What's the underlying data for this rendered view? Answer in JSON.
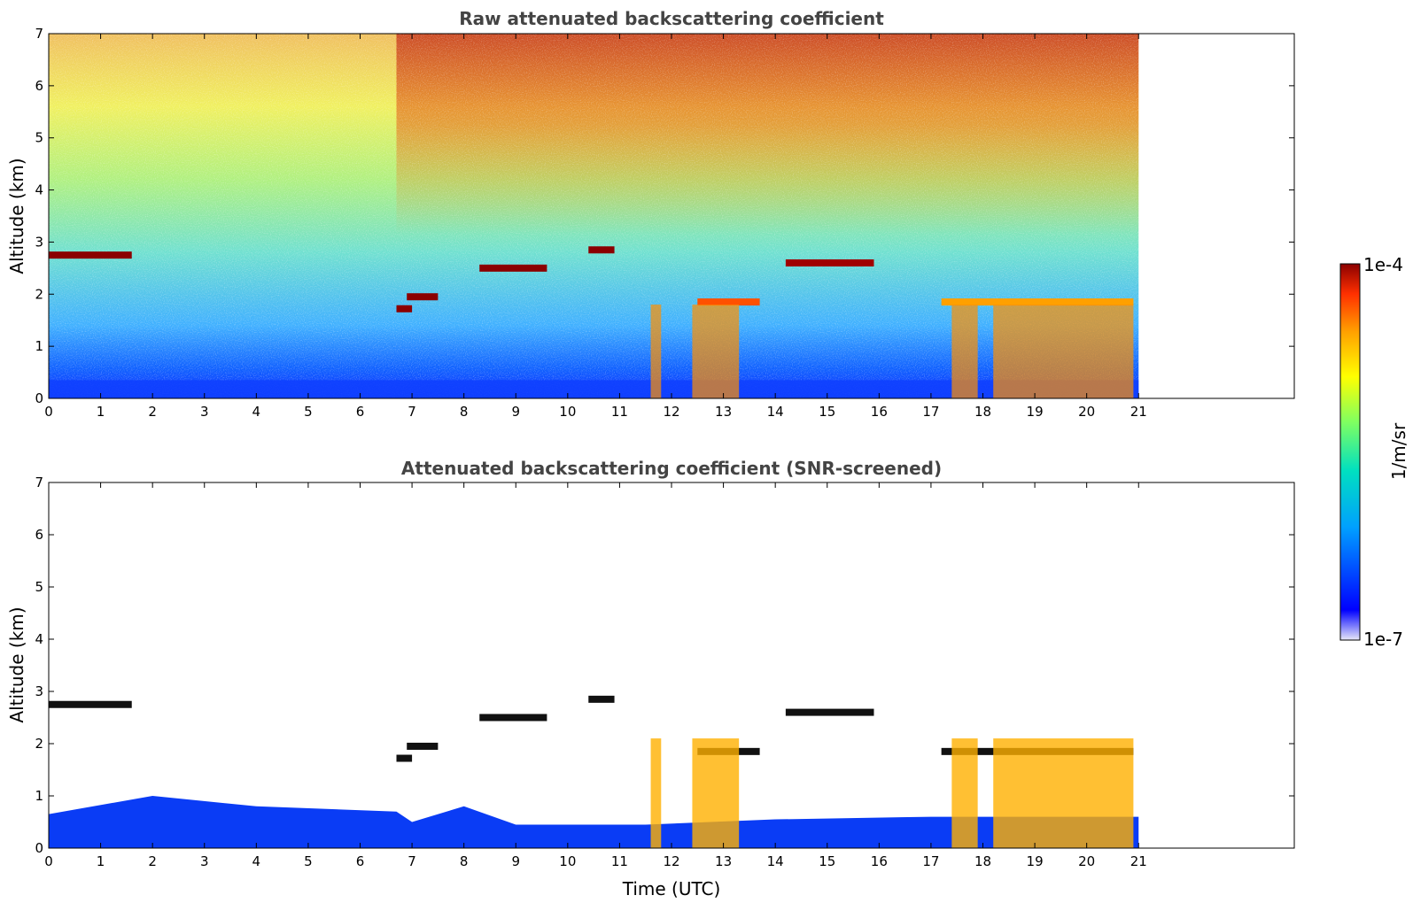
{
  "chart_data": [
    {
      "type": "heatmap",
      "title": "Raw attenuated backscattering coefficient",
      "xlabel": "",
      "ylabel": "Altitude (km)",
      "xlim": [
        0,
        24
      ],
      "ylim": [
        0,
        7
      ],
      "xticks": [
        "0",
        "1",
        "2",
        "3",
        "4",
        "5",
        "6",
        "7",
        "8",
        "9",
        "10",
        "11",
        "12",
        "13",
        "14",
        "15",
        "16",
        "17",
        "18",
        "19",
        "20",
        "21"
      ],
      "yticks": [
        "0",
        "1",
        "2",
        "3",
        "4",
        "5",
        "6",
        "7"
      ],
      "data_end_time": 21,
      "features": [
        {
          "kind": "cloud",
          "t0": 0.0,
          "t1": 1.6,
          "alt": 2.75,
          "color": "#8b0000"
        },
        {
          "kind": "cloud",
          "t0": 6.7,
          "t1": 7.0,
          "alt": 1.72,
          "color": "#8b0000"
        },
        {
          "kind": "cloud",
          "t0": 6.9,
          "t1": 7.5,
          "alt": 1.95,
          "color": "#8b0000"
        },
        {
          "kind": "cloud",
          "t0": 8.3,
          "t1": 9.6,
          "alt": 2.5,
          "color": "#8b0000"
        },
        {
          "kind": "cloud",
          "t0": 10.4,
          "t1": 10.9,
          "alt": 2.85,
          "color": "#8b0000"
        },
        {
          "kind": "cloud",
          "t0": 12.5,
          "t1": 13.7,
          "alt": 1.85,
          "color": "#ff5000"
        },
        {
          "kind": "cloud",
          "t0": 14.2,
          "t1": 15.9,
          "alt": 2.6,
          "color": "#a00000"
        },
        {
          "kind": "cloud",
          "t0": 17.2,
          "t1": 20.9,
          "alt": 1.85,
          "color": "#ffa000"
        }
      ],
      "colorbar": {
        "min_label": "1e-7",
        "max_label": "1e-4",
        "label": "1/m/sr"
      }
    },
    {
      "type": "heatmap",
      "title": "Attenuated backscattering coefficient (SNR-screened)",
      "xlabel": "Time (UTC)",
      "ylabel": "Altitude (km)",
      "xlim": [
        0,
        24
      ],
      "ylim": [
        0,
        7
      ],
      "xticks": [
        "0",
        "1",
        "2",
        "3",
        "4",
        "5",
        "6",
        "7",
        "8",
        "9",
        "10",
        "11",
        "12",
        "13",
        "14",
        "15",
        "16",
        "17",
        "18",
        "19",
        "20",
        "21"
      ],
      "yticks": [
        "0",
        "1",
        "2",
        "3",
        "4",
        "5",
        "6",
        "7"
      ],
      "data_end_time": 21,
      "boundary_layer_top_km": [
        {
          "t": 0,
          "h": 0.65
        },
        {
          "t": 2,
          "h": 1.0
        },
        {
          "t": 4,
          "h": 0.8
        },
        {
          "t": 6.7,
          "h": 0.7
        },
        {
          "t": 7,
          "h": 0.5
        },
        {
          "t": 8,
          "h": 0.8
        },
        {
          "t": 9,
          "h": 0.45
        },
        {
          "t": 11.5,
          "h": 0.45
        },
        {
          "t": 14,
          "h": 0.55
        },
        {
          "t": 17,
          "h": 0.6
        },
        {
          "t": 21,
          "h": 0.6
        }
      ]
    }
  ],
  "colors": {
    "colormap": [
      "#e8e8f8",
      "#0000ff",
      "#00a0ff",
      "#00e0c0",
      "#80ff60",
      "#ffff00",
      "#ffa000",
      "#ff3000",
      "#8b0000"
    ]
  }
}
